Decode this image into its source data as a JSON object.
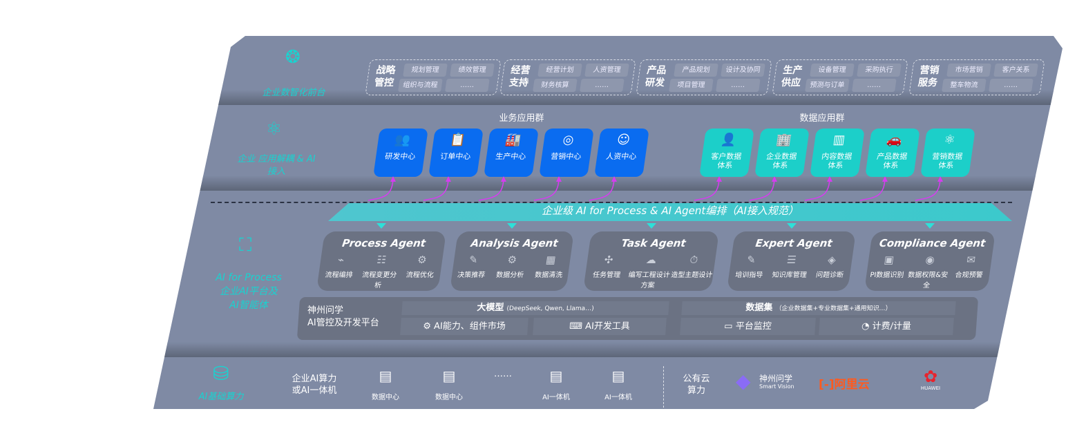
{
  "front": {
    "label": "企业数智化前台",
    "icon": "brain-icon",
    "groups": [
      {
        "title": "战略管控",
        "items": [
          "规划管理",
          "绩效管理",
          "组织与流程",
          "……"
        ]
      },
      {
        "title": "经营支持",
        "items": [
          "经营计划",
          "人资管理",
          "财务核算",
          "……"
        ]
      },
      {
        "title": "产品研发",
        "items": [
          "产品规划",
          "设计及协同",
          "项目管理",
          "……"
        ]
      },
      {
        "title": "生产供应",
        "items": [
          "设备管理",
          "采购执行",
          "预测与订单",
          "……"
        ]
      },
      {
        "title": "营销服务",
        "items": [
          "市场营销",
          "客户关系",
          "整车物流",
          "……"
        ]
      }
    ]
  },
  "apps": {
    "label": "企业 应用解耦 & AI 接入",
    "icon": "network-icon",
    "business_title": "业务应用群",
    "data_title": "数据应用群",
    "business": [
      {
        "label": "研发中心",
        "icon": "users-icon"
      },
      {
        "label": "订单中心",
        "icon": "clipboard-icon"
      },
      {
        "label": "生产中心",
        "icon": "factory-icon"
      },
      {
        "label": "营销中心",
        "icon": "target-icon"
      },
      {
        "label": "人资中心",
        "icon": "person-icon"
      }
    ],
    "data": [
      {
        "label": "客户数据体系",
        "icon": "user-icon"
      },
      {
        "label": "企业数据体系",
        "icon": "building-icon"
      },
      {
        "label": "内容数据体系",
        "icon": "books-icon"
      },
      {
        "label": "产品数据体系",
        "icon": "car-icon"
      },
      {
        "label": "营销数据体系",
        "icon": "atom-icon"
      }
    ],
    "colors": {
      "business": "#0a6cf0",
      "data": "#1ccfc9",
      "link": "#d63cf0"
    }
  },
  "ai": {
    "label_en": "AI for Process",
    "label_cn1": "企业AI平台及",
    "label_cn2": "AI智能体",
    "icon": "face-scan-icon",
    "banner": "企业级 AI for Process & AI Agent编排（AI接入规范）",
    "agents": [
      {
        "name": "Process Agent",
        "items": [
          "流程编排",
          "流程变更分析",
          "流程优化"
        ]
      },
      {
        "name": "Analysis Agent",
        "items": [
          "决策推荐",
          "数据分析",
          "数据清洗"
        ]
      },
      {
        "name": "Task Agent",
        "items": [
          "任务管理",
          "编写工程设计方案",
          "造型主题设计"
        ]
      },
      {
        "name": "Expert Agent",
        "items": [
          "培训指导",
          "知识库管理",
          "问题诊断"
        ]
      },
      {
        "name": "Compliance Agent",
        "items": [
          "PI数据识别",
          "数据权限&安全",
          "合规预警"
        ]
      }
    ],
    "platform": {
      "title1": "神州问学",
      "title2": "AI管控及开发平台",
      "model_title": "大模型",
      "model_note": "(DeepSeek, Qwen, Llama…)",
      "dataset_title": "数据集",
      "dataset_note": "（企业数据集+专业数据集+通用知识…）",
      "cells": [
        "AI能力、组件市场",
        "AI开发工具",
        "平台监控",
        "计费/计量"
      ]
    }
  },
  "infra": {
    "label": "AI基础算力",
    "icon": "database-icon",
    "private_label1": "企业AI算力",
    "private_label2": "或AI一体机",
    "servers": [
      "数据中心",
      "数据中心",
      "……",
      "AI一体机",
      "AI一体机"
    ],
    "public_label1": "公有云",
    "public_label2": "算力",
    "logos": [
      {
        "name": "神州问学",
        "sub": "Smart Vision"
      },
      {
        "name": "阿里云"
      },
      {
        "name": "HUAWEI"
      }
    ]
  }
}
